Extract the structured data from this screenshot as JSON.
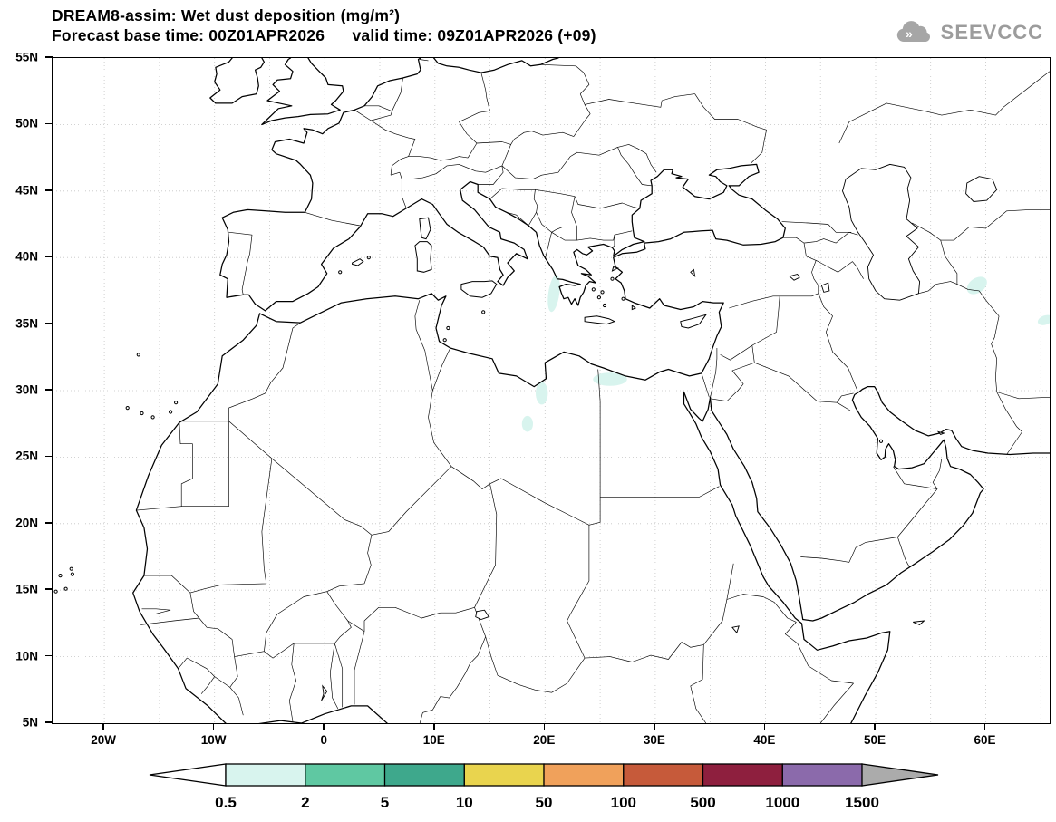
{
  "header": {
    "title_line1": "DREAM8-assim: Wet dust deposition (mg/m²)",
    "title_line2": "Forecast base time: 00Z01APR2026      valid time: 09Z01APR2026 (+09)",
    "logo_text": "SEEVCCC"
  },
  "chart_data": {
    "type": "map",
    "title": "DREAM8-assim: Wet dust deposition (mg/m²)",
    "model": "DREAM8-assim",
    "variable": "Wet dust deposition",
    "units": "mg/m²",
    "forecast_base_time": "00Z01APR2026",
    "valid_time": "09Z01APR2026",
    "lead_time": "+09",
    "lon_range": [
      -24.7,
      65.8
    ],
    "lat_range": [
      5,
      55
    ],
    "graticule_spacing_deg": 5,
    "xticks": [
      {
        "lon": -20,
        "label": "20W"
      },
      {
        "lon": -10,
        "label": "10W"
      },
      {
        "lon": 0,
        "label": "0"
      },
      {
        "lon": 10,
        "label": "10E"
      },
      {
        "lon": 20,
        "label": "20E"
      },
      {
        "lon": 30,
        "label": "30E"
      },
      {
        "lon": 40,
        "label": "40E"
      },
      {
        "lon": 50,
        "label": "50E"
      },
      {
        "lon": 60,
        "label": "60E"
      }
    ],
    "yticks": [
      {
        "lat": 5,
        "label": "5N"
      },
      {
        "lat": 10,
        "label": "10N"
      },
      {
        "lat": 15,
        "label": "15N"
      },
      {
        "lat": 20,
        "label": "20N"
      },
      {
        "lat": 25,
        "label": "25N"
      },
      {
        "lat": 30,
        "label": "30N"
      },
      {
        "lat": 35,
        "label": "35N"
      },
      {
        "lat": 40,
        "label": "40N"
      },
      {
        "lat": 45,
        "label": "45N"
      },
      {
        "lat": 50,
        "label": "50N"
      },
      {
        "lat": 55,
        "label": "55N"
      }
    ],
    "colorbar": {
      "levels": [
        "0.5",
        "2",
        "5",
        "10",
        "50",
        "100",
        "500",
        "1000",
        "1500"
      ],
      "segment_colors": [
        "#d8f4ee",
        "#5fc8a2",
        "#3ea88c",
        "#e9d44e",
        "#f0a15b",
        "#c65a3a",
        "#8e1f3e",
        "#8b6aab"
      ],
      "below_min_color": "#ffffff",
      "above_max_color": "#ababab"
    },
    "deposition_patches": [
      {
        "name": "ionian-west-greece",
        "lon": 20.8,
        "lat": 37.3,
        "rx_deg": 0.5,
        "ry_deg": 1.4,
        "rot": 8,
        "level": "0.5-2",
        "color": "#d8f4ee"
      },
      {
        "name": "egypt-coast",
        "lon": 25.9,
        "lat": 30.85,
        "rx_deg": 1.55,
        "ry_deg": 0.5,
        "rot": 0,
        "level": "0.5-2",
        "color": "#d8f4ee"
      },
      {
        "name": "ne-libya",
        "lon": 19.7,
        "lat": 29.8,
        "rx_deg": 0.55,
        "ry_deg": 0.85,
        "rot": 0,
        "level": "0.5-2",
        "color": "#d8f4ee"
      },
      {
        "name": "libya-interior",
        "lon": 18.4,
        "lat": 27.5,
        "rx_deg": 0.5,
        "ry_deg": 0.6,
        "rot": 0,
        "level": "0.5-2",
        "color": "#d8f4ee"
      },
      {
        "name": "se-caspian",
        "lon": 59.2,
        "lat": 37.9,
        "rx_deg": 1.0,
        "ry_deg": 0.55,
        "rot": -35,
        "level": "0.5-2",
        "color": "#d8f4ee"
      },
      {
        "name": "east-edge-iran",
        "lon": 65.4,
        "lat": 35.3,
        "rx_deg": 0.7,
        "ry_deg": 0.35,
        "rot": -20,
        "level": "0.5-2",
        "color": "#d8f4ee"
      }
    ]
  }
}
